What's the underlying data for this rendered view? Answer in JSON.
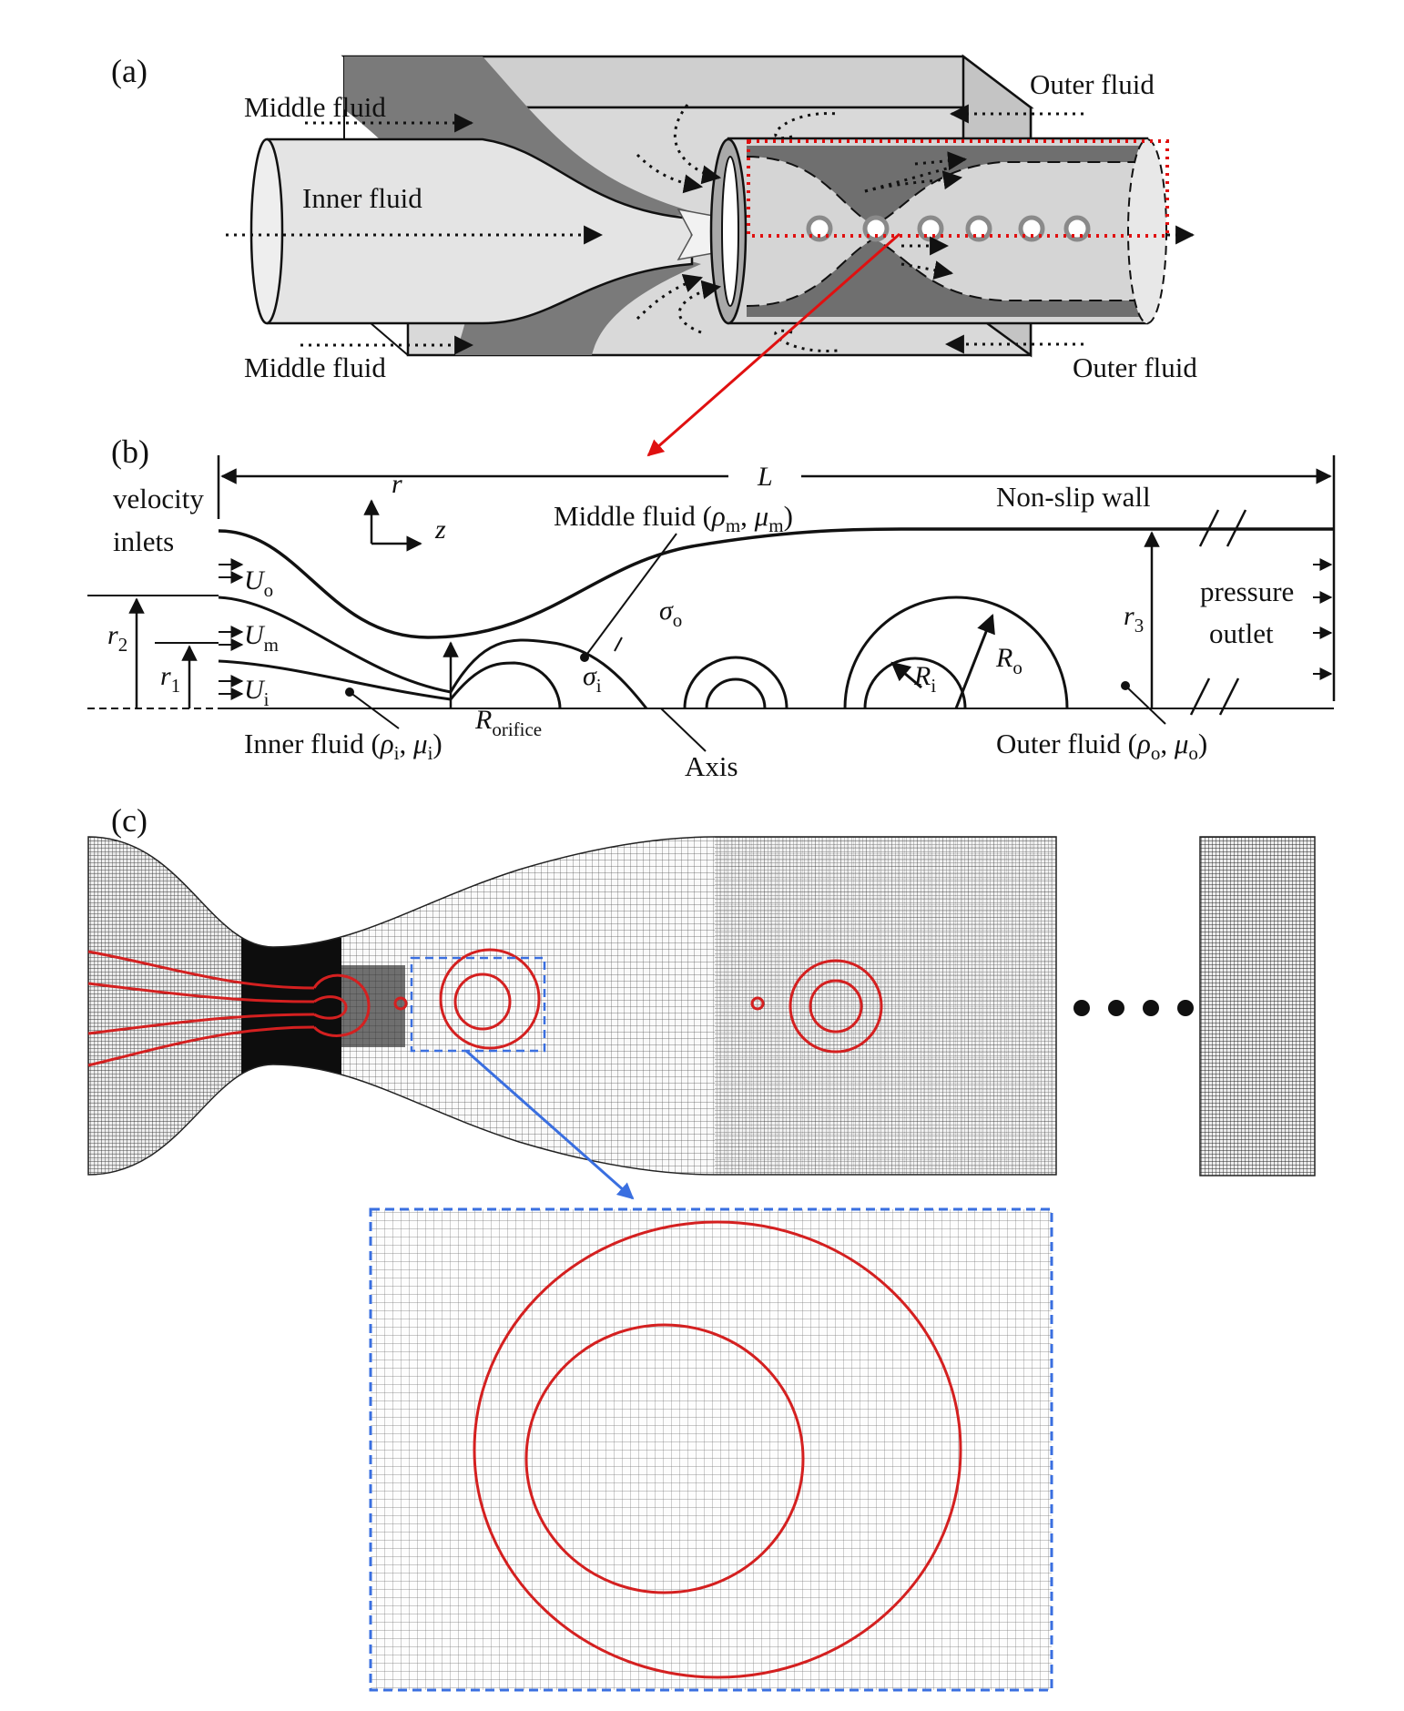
{
  "panels": {
    "a": "(a)",
    "b": "(b)",
    "c": "(c)"
  },
  "panel_a": {
    "middle_fluid_top": "Middle fluid",
    "middle_fluid_bottom": "Middle fluid",
    "inner_fluid": "Inner fluid",
    "outer_fluid_top": "Outer fluid",
    "outer_fluid_bottom": "Outer fluid",
    "droplet_count": 6
  },
  "panel_b": {
    "length_symbol": "L",
    "velocity_inlets": [
      "velocity",
      "inlets"
    ],
    "axis_r": "r",
    "axis_z": "z",
    "non_slip_wall": "Non-slip wall",
    "middle_fluid_label": {
      "text": "Middle fluid (",
      "rho": "ρ",
      "rho_sub": "m",
      "sep": ", ",
      "mu": "μ",
      "mu_sub": "m",
      "end": ")"
    },
    "inner_fluid_label": {
      "text": "Inner fluid (",
      "rho": "ρ",
      "rho_sub": "i",
      "sep": ", ",
      "mu": "μ",
      "mu_sub": "i",
      "end": ")"
    },
    "outer_fluid_label": {
      "text": "Outer fluid (",
      "rho": "ρ",
      "rho_sub": "o",
      "sep": ", ",
      "mu": "μ",
      "mu_sub": "o",
      "end": ")"
    },
    "U_o": {
      "sym": "U",
      "sub": "o"
    },
    "U_m": {
      "sym": "U",
      "sub": "m"
    },
    "U_i": {
      "sym": "U",
      "sub": "i"
    },
    "r_1": {
      "sym": "r",
      "sub": "1"
    },
    "r_2": {
      "sym": "r",
      "sub": "2"
    },
    "r_3": {
      "sym": "r",
      "sub": "3"
    },
    "sigma_o": {
      "sym": "σ",
      "sub": "o"
    },
    "sigma_i": {
      "sym": "σ",
      "sub": "i"
    },
    "R_i": {
      "sym": "R",
      "sub": "i"
    },
    "R_o": {
      "sym": "R",
      "sub": "o"
    },
    "R_orifice": {
      "sym": "R",
      "sub": "orifice"
    },
    "axis_label": "Axis",
    "pressure_outlet": [
      "pressure",
      "outlet"
    ]
  },
  "panel_c": {
    "ellipsis_dots": 4
  },
  "colors": {
    "ink": "#111111",
    "interface_red": "#d42020",
    "zoom_arrow_blue": "#3a6fe0",
    "dashed_box_blue": "#3a6fe0",
    "selection_red_dots": "#e01010",
    "pointer_red": "#e01010",
    "body_gray_light": "#d9d9d9",
    "body_gray_mid": "#bfbfbf",
    "body_gray_dark": "#7a7a7a"
  }
}
